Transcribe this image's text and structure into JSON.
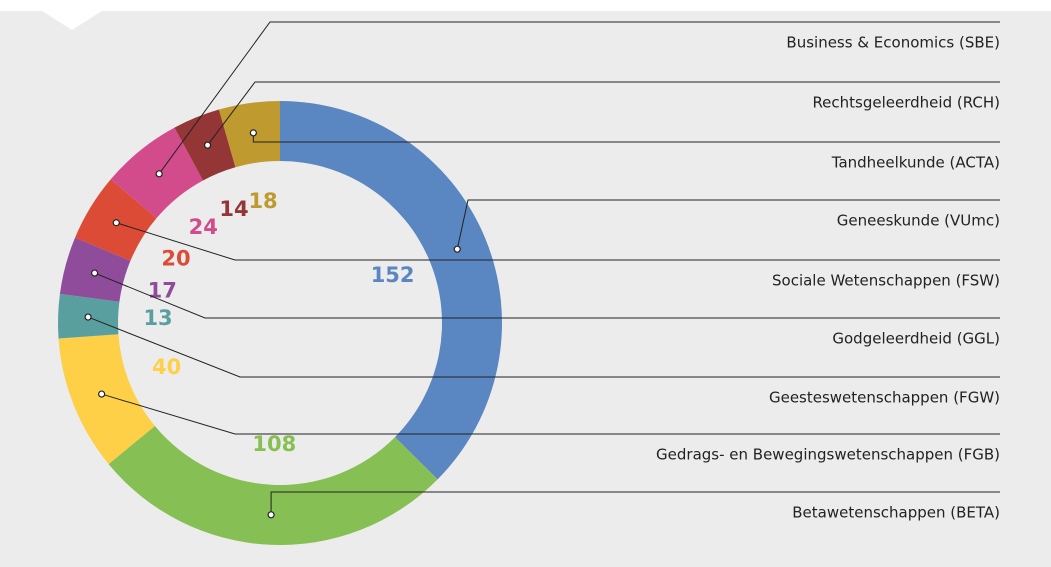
{
  "chart_data": {
    "type": "donut",
    "categories": [
      "Geneeskunde (VUmc)",
      "Betawetenschappen (BETA)",
      "Gedrags- en Bewegingswetenschappen (FGB)",
      "Geesteswetenschappen (FGW)",
      "Godgeleerdheid (GGL)",
      "Sociale Wetenschappen (FSW)",
      "Business & Economics (SBE)",
      "Rechtsgeleerdheid (RCH)",
      "Tandheelkunde (ACTA)"
    ],
    "values": [
      152,
      108,
      40,
      13,
      17,
      20,
      24,
      14,
      18
    ],
    "colors": [
      "#5a86c1",
      "#86bf53",
      "#fdd048",
      "#5a9fa0",
      "#8e4c9a",
      "#dc4b36",
      "#d24c8b",
      "#943636",
      "#bf9a2f"
    ]
  }
}
